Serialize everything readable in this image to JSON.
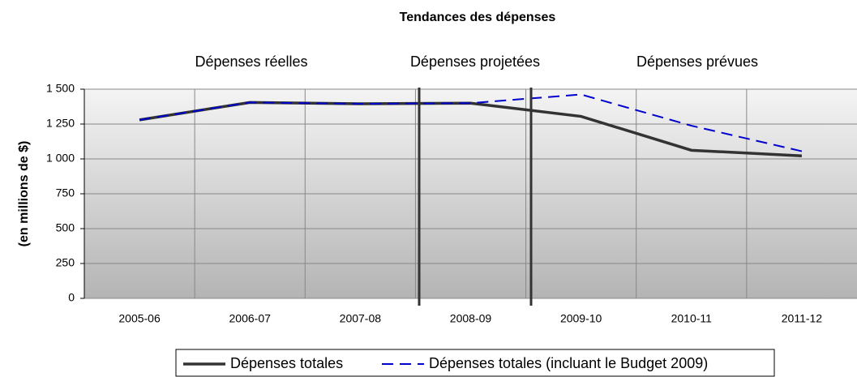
{
  "chart_data": {
    "type": "line",
    "title": "Tendances des dépenses",
    "y_label": "(en millions de $)",
    "annotations": [
      "Dépenses réelles",
      "Dépenses projetées",
      "Dépenses prévues"
    ],
    "categories": [
      "2005-06",
      "2006-07",
      "2007-08",
      "2008-09",
      "2009-10",
      "2010-11",
      "2011-12"
    ],
    "series": [
      {
        "name": "Dépenses totales",
        "color": "#333333",
        "style": "solid",
        "values": [
          1280,
          1405,
          1395,
          1400,
          1305,
          1062,
          1022
        ]
      },
      {
        "name": "Dépenses totales (incluant le Budget 2009)",
        "color": "#0000cc",
        "style": "dashed",
        "values": [
          1280,
          1405,
          1395,
          1400,
          1462,
          1238,
          1055
        ]
      }
    ],
    "ylim": [
      0,
      1500
    ],
    "yticks": [
      0,
      250,
      500,
      750,
      {
        "value": 1000,
        "label": "1 000"
      },
      {
        "value": 1250,
        "label": "1 250"
      },
      {
        "value": 1500,
        "label": "1 500"
      }
    ],
    "grid": true
  }
}
